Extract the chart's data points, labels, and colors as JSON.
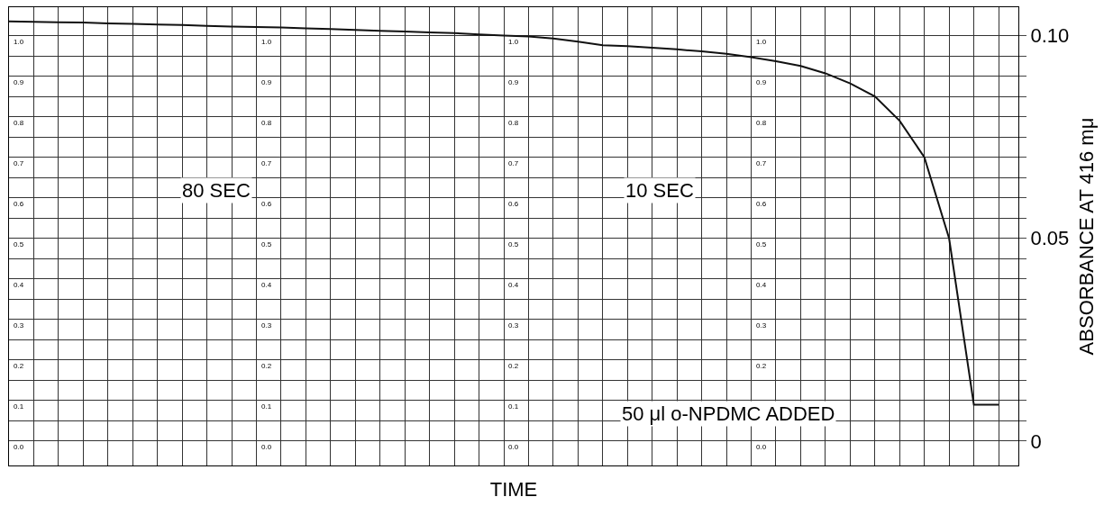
{
  "chart_data": {
    "type": "line",
    "xlabel": "TIME",
    "ylabel": "ABSORBANCE AT 416 mμ",
    "categories": [
      null,
      null,
      null,
      null,
      null,
      null,
      null,
      null,
      null,
      null,
      null,
      null,
      null,
      null,
      null,
      null,
      null,
      null,
      null,
      null,
      null,
      null,
      null,
      null,
      null,
      null,
      null,
      null,
      null,
      null,
      null,
      null,
      null,
      null,
      null,
      null,
      null,
      null,
      null,
      null,
      null
    ],
    "series": [
      {
        "color": "#111111",
        "values": [
          0.1035,
          0.1034,
          0.1033,
          0.1032,
          0.103,
          0.1029,
          0.1027,
          0.1026,
          0.1024,
          0.1022,
          0.1021,
          0.102,
          0.1018,
          0.1016,
          0.1014,
          0.1012,
          0.101,
          0.1008,
          0.1006,
          0.1003,
          0.1,
          0.0998,
          0.0993,
          0.0985,
          0.0976,
          0.0974,
          0.097,
          0.0966,
          0.0961,
          0.0955,
          0.0947,
          0.0937,
          0.0925,
          0.0907,
          0.0882,
          0.085,
          0.079,
          0.07,
          0.05,
          0.009,
          0.009
        ]
      }
    ],
    "ylim": [
      -0.006,
      0.107
    ],
    "yticks": [
      {
        "value": 0,
        "label": "0"
      },
      {
        "value": 0.005,
        "label": null
      },
      {
        "value": 0.01,
        "label": null
      },
      {
        "value": 0.015,
        "label": null
      },
      {
        "value": 0.02,
        "label": null
      },
      {
        "value": 0.025,
        "label": null
      },
      {
        "value": 0.03,
        "label": null
      },
      {
        "value": 0.035,
        "label": null
      },
      {
        "value": 0.04,
        "label": null
      },
      {
        "value": 0.045,
        "label": null
      },
      {
        "value": 0.05,
        "label": "0.05"
      },
      {
        "value": 0.055,
        "label": null
      },
      {
        "value": 0.06,
        "label": null
      },
      {
        "value": 0.065,
        "label": null
      },
      {
        "value": 0.07,
        "label": null
      },
      {
        "value": 0.075,
        "label": null
      },
      {
        "value": 0.08,
        "label": null
      },
      {
        "value": 0.085,
        "label": null
      },
      {
        "value": 0.09,
        "label": null
      },
      {
        "value": 0.095,
        "label": null
      },
      {
        "value": 0.1,
        "label": "0.10"
      }
    ],
    "y2lim": [
      -0.06,
      1.07
    ],
    "y2ticks": [
      {
        "value": 0,
        "label": "0.0"
      },
      {
        "value": 0.1,
        "label": "0.1"
      },
      {
        "value": 0.2,
        "label": "0.2"
      },
      {
        "value": 0.3,
        "label": "0.3"
      },
      {
        "value": 0.4,
        "label": "0.4"
      },
      {
        "value": 0.5,
        "label": "0.5"
      },
      {
        "value": 0.6,
        "label": "0.6"
      },
      {
        "value": 0.7,
        "label": "0.7"
      },
      {
        "value": 0.8,
        "label": "0.8"
      },
      {
        "value": 0.9,
        "label": "0.9"
      },
      {
        "value": 1.0,
        "label": "1.0"
      }
    ],
    "annotations": [
      "80 SEC",
      "10 SEC",
      "50 μl o-NPDMC ADDED"
    ],
    "grid": true,
    "tick_labels": "y",
    "marker": "none",
    "line_style": "solid"
  }
}
